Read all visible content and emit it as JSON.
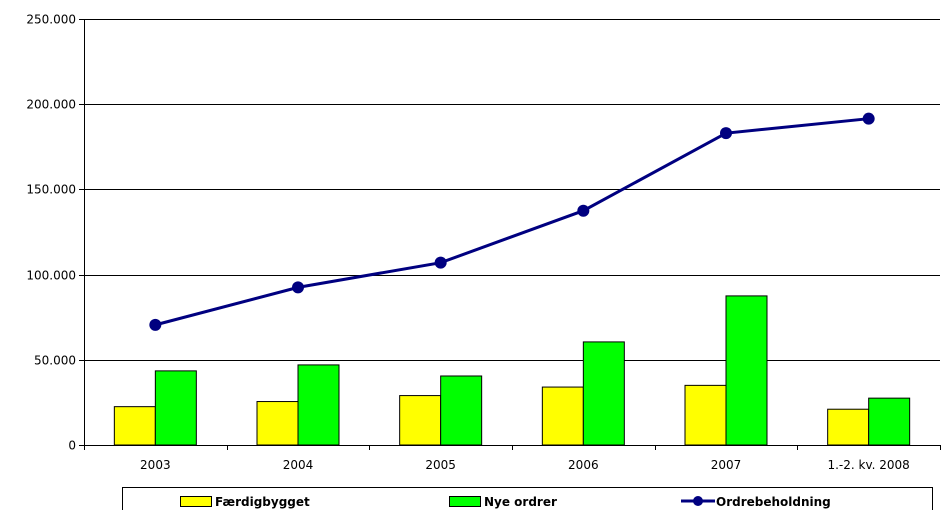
{
  "chart_data": {
    "type": "bar",
    "title": "",
    "xlabel": "",
    "ylabel": "",
    "categories": [
      "2003",
      "2004",
      "2005",
      "2006",
      "2007",
      "1.-2. kv. 2008"
    ],
    "ylim": [
      0,
      250000
    ],
    "yticks": [
      0,
      50000,
      100000,
      150000,
      200000,
      250000
    ],
    "ytick_labels": [
      "0",
      "50.000",
      "100.000",
      "150.000",
      "200.000",
      "250.000"
    ],
    "grid": true,
    "legend_position": "bottom",
    "series": [
      {
        "name": "Færdigbygget",
        "type": "bar",
        "color": "#ffff00",
        "values": [
          22500,
          25500,
          29000,
          34000,
          35000,
          21000
        ]
      },
      {
        "name": "Nye ordrer",
        "type": "bar",
        "color": "#00ff00",
        "values": [
          43500,
          47000,
          40500,
          60500,
          87500,
          27500
        ]
      },
      {
        "name": "Ordrebeholdning",
        "type": "line",
        "color": "#000080",
        "values": [
          70500,
          92500,
          107000,
          137500,
          183000,
          191500
        ]
      }
    ]
  }
}
